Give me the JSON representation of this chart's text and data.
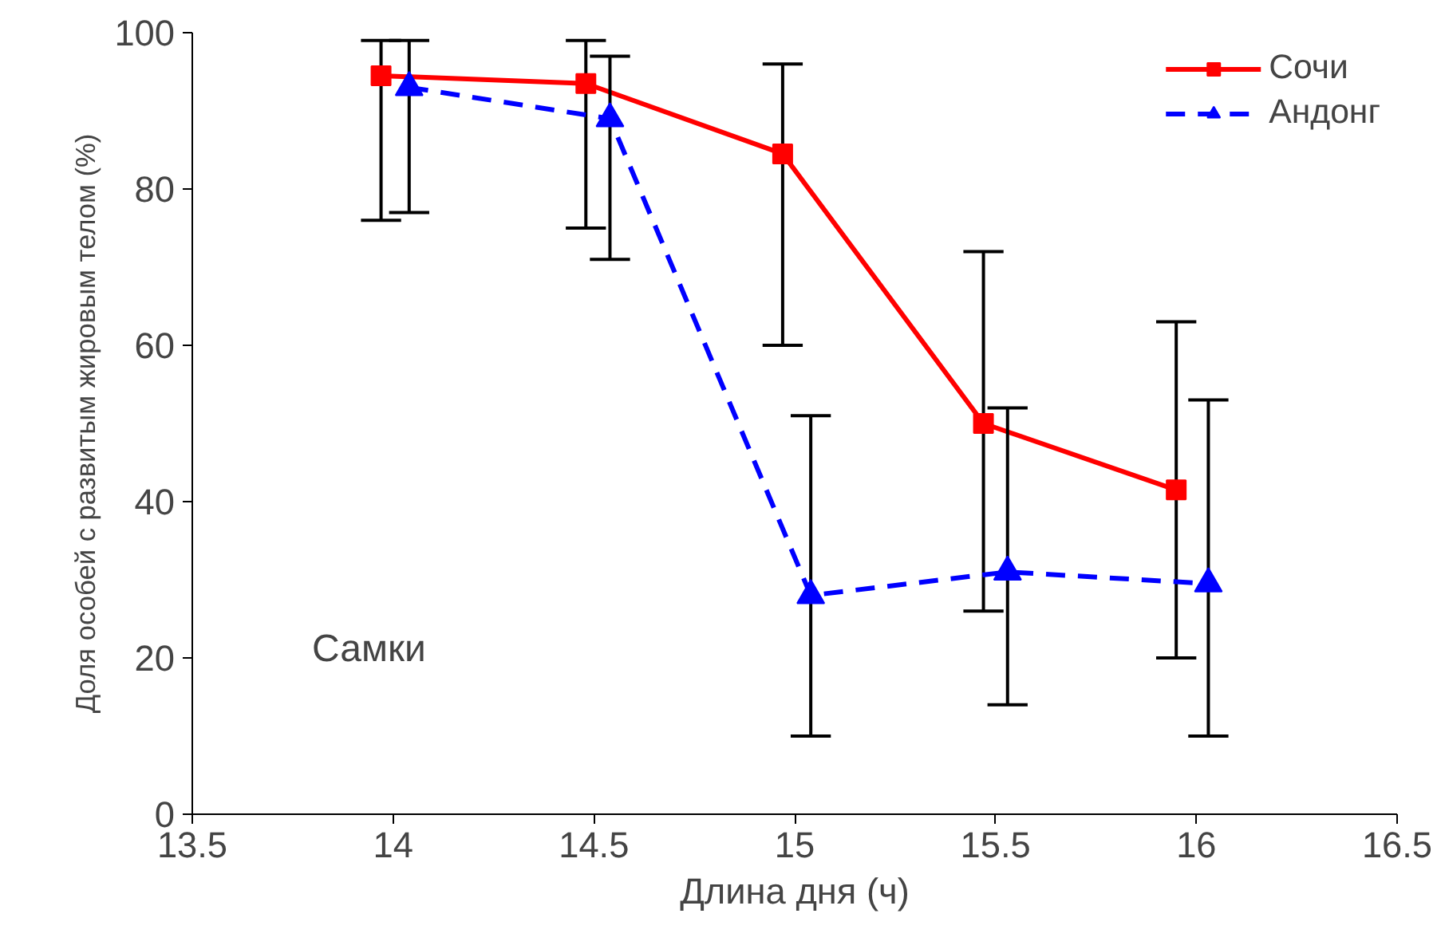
{
  "chart_data": {
    "type": "line",
    "xlabel": "Длина дня (ч)",
    "ylabel": "Доля особей с развитым жировым телом (%)",
    "xlim": [
      13.5,
      16.5
    ],
    "xticks": [
      13.5,
      14,
      14.5,
      15,
      15.5,
      16,
      16.5
    ],
    "ylim": [
      0,
      100
    ],
    "yticks": [
      0,
      20,
      40,
      60,
      80,
      100
    ],
    "grid": false,
    "legend": "top right",
    "annotations": [
      "Самки"
    ],
    "series": [
      {
        "name": "Сочи",
        "color": "#ff0000",
        "marker": "square",
        "line_style": "solid",
        "x": [
          13.97,
          14.48,
          14.97,
          15.47,
          15.95
        ],
        "values": [
          94.5,
          93.5,
          84.5,
          50,
          41.5
        ],
        "errors": [
          [
            76,
            99
          ],
          [
            75,
            99
          ],
          [
            60,
            96
          ],
          [
            26,
            72
          ],
          [
            20,
            63
          ]
        ]
      },
      {
        "name": "Андонг",
        "color": "#0000ff",
        "marker": "triangle",
        "line_style": "dashed",
        "x": [
          14.04,
          14.54,
          15.04,
          15.53,
          16.03
        ],
        "values": [
          93,
          89,
          28,
          31,
          29.5
        ],
        "errors": [
          [
            77,
            99
          ],
          [
            71,
            97
          ],
          [
            10,
            51
          ],
          [
            14,
            52
          ],
          [
            10,
            53
          ]
        ]
      }
    ]
  }
}
